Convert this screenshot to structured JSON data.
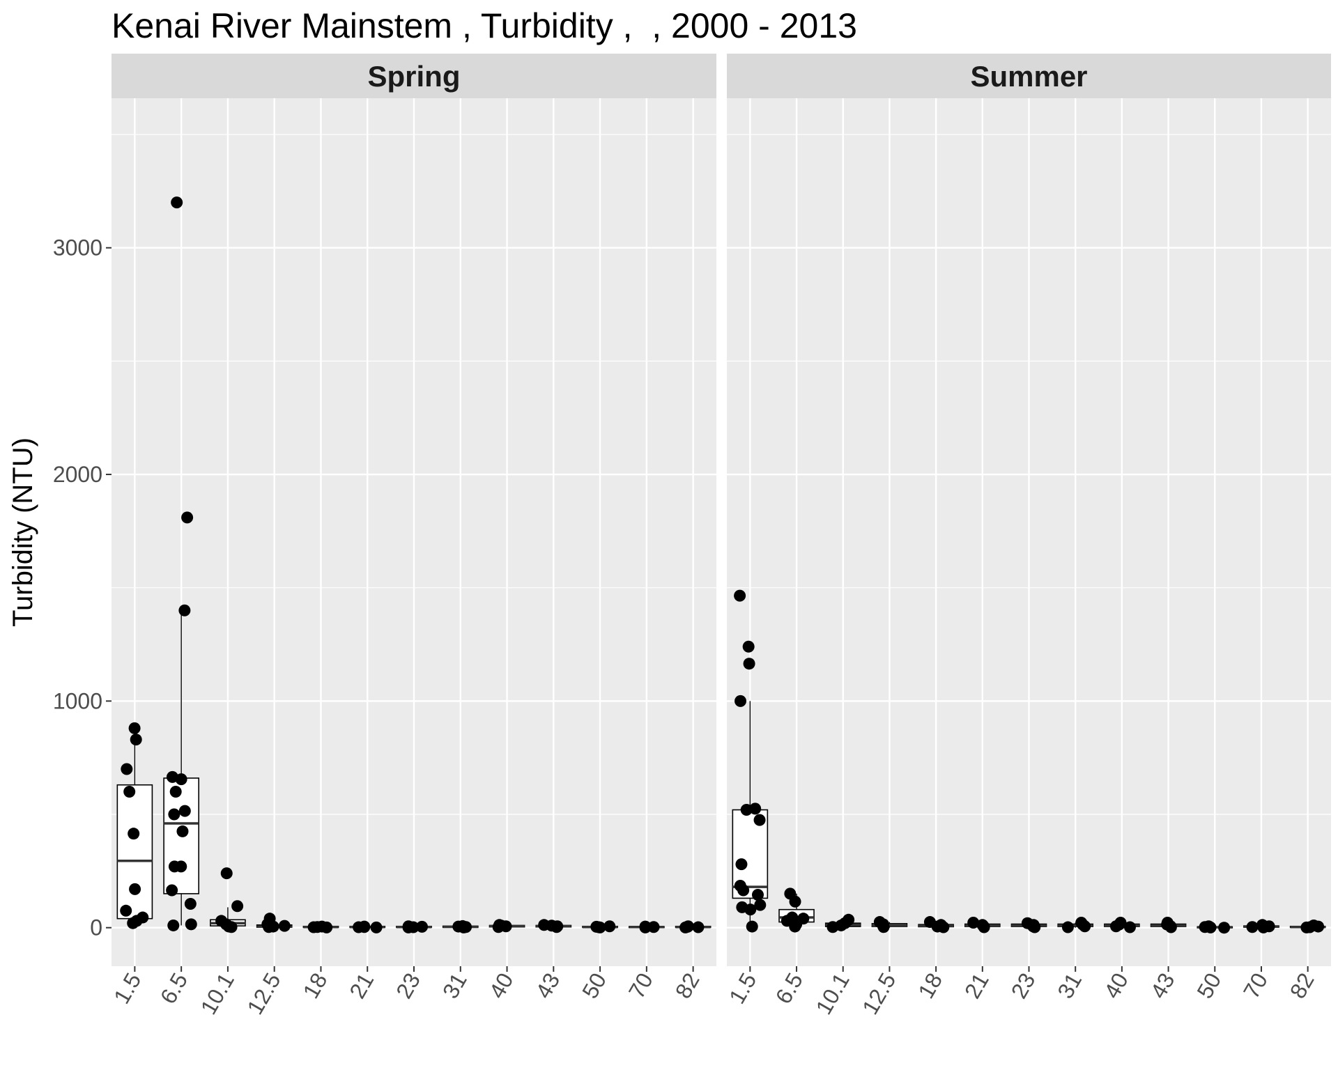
{
  "chart_data": {
    "type": "boxplot",
    "title": "Kenai River Mainstem , Turbidity ,  , 2000 - 2013",
    "ylabel": "Turbidity (NTU)",
    "xlabel": "",
    "ylim": [
      -170,
      3660
    ],
    "yticks": [
      0,
      1000,
      2000,
      3000
    ],
    "grid": true,
    "categories": [
      "1.5",
      "6.5",
      "10.1",
      "12.5",
      "18",
      "21",
      "23",
      "31",
      "40",
      "43",
      "50",
      "70",
      "82"
    ],
    "facets": [
      {
        "name": "Spring",
        "boxes": [
          {
            "category": "1.5",
            "q1": 40,
            "median": 295,
            "q3": 630,
            "whisker_low": 20,
            "whisker_high": 880
          },
          {
            "category": "6.5",
            "q1": 150,
            "median": 460,
            "q3": 660,
            "whisker_low": 10,
            "whisker_high": 1400
          },
          {
            "category": "10.1",
            "q1": 8,
            "median": 20,
            "q3": 35,
            "whisker_low": 0,
            "whisker_high": 90
          },
          {
            "category": "12.5",
            "q1": 2,
            "median": 5,
            "q3": 12,
            "whisker_low": 0,
            "whisker_high": 25
          },
          {
            "category": "18",
            "q1": 1,
            "median": 3,
            "q3": 6,
            "whisker_low": 0,
            "whisker_high": 10
          },
          {
            "category": "21",
            "q1": 1,
            "median": 3,
            "q3": 6,
            "whisker_low": 0,
            "whisker_high": 10
          },
          {
            "category": "23",
            "q1": 1,
            "median": 3,
            "q3": 6,
            "whisker_low": 0,
            "whisker_high": 10
          },
          {
            "category": "31",
            "q1": 1,
            "median": 4,
            "q3": 7,
            "whisker_low": 0,
            "whisker_high": 12
          },
          {
            "category": "40",
            "q1": 3,
            "median": 6,
            "q3": 10,
            "whisker_low": 0,
            "whisker_high": 15
          },
          {
            "category": "43",
            "q1": 3,
            "median": 6,
            "q3": 10,
            "whisker_low": 0,
            "whisker_high": 15
          },
          {
            "category": "50",
            "q1": 1,
            "median": 3,
            "q3": 6,
            "whisker_low": 0,
            "whisker_high": 10
          },
          {
            "category": "70",
            "q1": 1,
            "median": 3,
            "q3": 5,
            "whisker_low": 0,
            "whisker_high": 8
          },
          {
            "category": "82",
            "q1": 1,
            "median": 3,
            "q3": 6,
            "whisker_low": 0,
            "whisker_high": 9
          }
        ],
        "points": [
          [
            "1.5",
            880
          ],
          [
            "1.5",
            830
          ],
          [
            "1.5",
            700
          ],
          [
            "1.5",
            600
          ],
          [
            "1.5",
            415
          ],
          [
            "1.5",
            170
          ],
          [
            "1.5",
            75
          ],
          [
            "1.5",
            45
          ],
          [
            "1.5",
            30
          ],
          [
            "1.5",
            20
          ],
          [
            "6.5",
            3200
          ],
          [
            "6.5",
            1810
          ],
          [
            "6.5",
            1400
          ],
          [
            "6.5",
            665
          ],
          [
            "6.5",
            655
          ],
          [
            "6.5",
            600
          ],
          [
            "6.5",
            515
          ],
          [
            "6.5",
            500
          ],
          [
            "6.5",
            425
          ],
          [
            "6.5",
            270
          ],
          [
            "6.5",
            270
          ],
          [
            "6.5",
            165
          ],
          [
            "6.5",
            105
          ],
          [
            "6.5",
            15
          ],
          [
            "6.5",
            10
          ],
          [
            "10.1",
            240
          ],
          [
            "10.1",
            95
          ],
          [
            "10.1",
            30
          ],
          [
            "10.1",
            15
          ],
          [
            "10.1",
            5
          ],
          [
            "10.1",
            3
          ],
          [
            "12.5",
            40
          ],
          [
            "12.5",
            15
          ],
          [
            "12.5",
            8
          ],
          [
            "12.5",
            5
          ],
          [
            "12.5",
            3
          ],
          [
            "18",
            5
          ],
          [
            "18",
            3
          ],
          [
            "18",
            2
          ],
          [
            "18",
            1
          ],
          [
            "21",
            5
          ],
          [
            "21",
            3
          ],
          [
            "21",
            2
          ],
          [
            "21",
            1
          ],
          [
            "23",
            6
          ],
          [
            "23",
            4
          ],
          [
            "23",
            2
          ],
          [
            "23",
            1
          ],
          [
            "31",
            7
          ],
          [
            "31",
            5
          ],
          [
            "31",
            3
          ],
          [
            "31",
            1
          ],
          [
            "40",
            12
          ],
          [
            "40",
            9
          ],
          [
            "40",
            6
          ],
          [
            "40",
            3
          ],
          [
            "43",
            12
          ],
          [
            "43",
            9
          ],
          [
            "43",
            6
          ],
          [
            "43",
            3
          ],
          [
            "50",
            6
          ],
          [
            "50",
            4
          ],
          [
            "50",
            2
          ],
          [
            "50",
            1
          ],
          [
            "70",
            5
          ],
          [
            "70",
            3
          ],
          [
            "70",
            2
          ],
          [
            "70",
            1
          ],
          [
            "82",
            6
          ],
          [
            "82",
            4
          ],
          [
            "82",
            2
          ],
          [
            "82",
            1
          ]
        ]
      },
      {
        "name": "Summer",
        "boxes": [
          {
            "category": "1.5",
            "q1": 130,
            "median": 180,
            "q3": 520,
            "whisker_low": 5,
            "whisker_high": 1000
          },
          {
            "category": "6.5",
            "q1": 25,
            "median": 45,
            "q3": 80,
            "whisker_low": 5,
            "whisker_high": 150
          },
          {
            "category": "10.1",
            "q1": 5,
            "median": 12,
            "q3": 20,
            "whisker_low": 0,
            "whisker_high": 35
          },
          {
            "category": "12.5",
            "q1": 5,
            "median": 10,
            "q3": 18,
            "whisker_low": 0,
            "whisker_high": 25
          },
          {
            "category": "18",
            "q1": 4,
            "median": 8,
            "q3": 14,
            "whisker_low": 0,
            "whisker_high": 25
          },
          {
            "category": "21",
            "q1": 5,
            "median": 10,
            "q3": 16,
            "whisker_low": 0,
            "whisker_high": 25
          },
          {
            "category": "23",
            "q1": 5,
            "median": 10,
            "q3": 16,
            "whisker_low": 0,
            "whisker_high": 22
          },
          {
            "category": "31",
            "q1": 5,
            "median": 10,
            "q3": 16,
            "whisker_low": 0,
            "whisker_high": 22
          },
          {
            "category": "40",
            "q1": 5,
            "median": 10,
            "q3": 16,
            "whisker_low": 0,
            "whisker_high": 22
          },
          {
            "category": "43",
            "q1": 5,
            "median": 10,
            "q3": 16,
            "whisker_low": 0,
            "whisker_high": 22
          },
          {
            "category": "50",
            "q1": 0,
            "median": 2,
            "q3": 4,
            "whisker_low": 0,
            "whisker_high": 6
          },
          {
            "category": "70",
            "q1": 2,
            "median": 5,
            "q3": 8,
            "whisker_low": 0,
            "whisker_high": 12
          },
          {
            "category": "82",
            "q1": 1,
            "median": 3,
            "q3": 6,
            "whisker_low": 0,
            "whisker_high": 10
          }
        ],
        "points": [
          [
            "1.5",
            1465
          ],
          [
            "1.5",
            1240
          ],
          [
            "1.5",
            1165
          ],
          [
            "1.5",
            1000
          ],
          [
            "1.5",
            525
          ],
          [
            "1.5",
            520
          ],
          [
            "1.5",
            475
          ],
          [
            "1.5",
            280
          ],
          [
            "1.5",
            185
          ],
          [
            "1.5",
            165
          ],
          [
            "1.5",
            145
          ],
          [
            "1.5",
            100
          ],
          [
            "1.5",
            90
          ],
          [
            "1.5",
            80
          ],
          [
            "1.5",
            5
          ],
          [
            "6.5",
            150
          ],
          [
            "6.5",
            115
          ],
          [
            "6.5",
            45
          ],
          [
            "6.5",
            40
          ],
          [
            "6.5",
            30
          ],
          [
            "6.5",
            15
          ],
          [
            "6.5",
            5
          ],
          [
            "10.1",
            35
          ],
          [
            "10.1",
            20
          ],
          [
            "10.1",
            10
          ],
          [
            "10.1",
            3
          ],
          [
            "12.5",
            25
          ],
          [
            "12.5",
            15
          ],
          [
            "12.5",
            8
          ],
          [
            "12.5",
            3
          ],
          [
            "18",
            25
          ],
          [
            "18",
            12
          ],
          [
            "18",
            5
          ],
          [
            "18",
            2
          ],
          [
            "21",
            22
          ],
          [
            "21",
            12
          ],
          [
            "21",
            6
          ],
          [
            "21",
            2
          ],
          [
            "23",
            20
          ],
          [
            "23",
            12
          ],
          [
            "23",
            6
          ],
          [
            "23",
            2
          ],
          [
            "31",
            22
          ],
          [
            "31",
            14
          ],
          [
            "31",
            6
          ],
          [
            "31",
            2
          ],
          [
            "40",
            22
          ],
          [
            "40",
            14
          ],
          [
            "40",
            6
          ],
          [
            "40",
            2
          ],
          [
            "43",
            22
          ],
          [
            "43",
            14
          ],
          [
            "43",
            6
          ],
          [
            "43",
            2
          ],
          [
            "50",
            6
          ],
          [
            "50",
            3
          ],
          [
            "50",
            1
          ],
          [
            "50",
            0
          ],
          [
            "70",
            12
          ],
          [
            "70",
            6
          ],
          [
            "70",
            3
          ],
          [
            "70",
            1
          ],
          [
            "82",
            10
          ],
          [
            "82",
            5
          ],
          [
            "82",
            2
          ],
          [
            "82",
            1
          ]
        ]
      }
    ]
  }
}
